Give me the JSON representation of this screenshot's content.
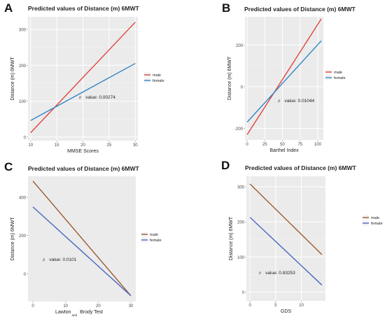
{
  "panels": [
    {
      "letter": "A"
    },
    {
      "letter": "B"
    },
    {
      "letter": "C"
    },
    {
      "letter": "D"
    }
  ],
  "legend_colors": {
    "male": "#e0443e",
    "female": "#2f86c7",
    "male_dark": "#9a5a2e",
    "female_dark": "#4a69c0"
  },
  "chart_data": [
    {
      "type": "line",
      "title": "Predicted values of Distance (m) 6MWT",
      "xlabel": "MMSE Scores",
      "ylabel": "Distance (m) 6MWT",
      "xlim": [
        9.5,
        30.5
      ],
      "ylim": [
        -10,
        335
      ],
      "x_ticks": [
        10,
        15,
        20,
        25,
        30
      ],
      "y_ticks": [
        0,
        100,
        200,
        300
      ],
      "grid": true,
      "legend_position": "right",
      "series": [
        {
          "name": "male",
          "color": "#e0443e",
          "x": [
            10,
            30
          ],
          "y": [
            12,
            320
          ]
        },
        {
          "name": "female",
          "color": "#2f86c7",
          "x": [
            10,
            30
          ],
          "y": [
            46,
            205
          ]
        }
      ],
      "annotation": {
        "p": "p",
        "text": "value: 0.00274",
        "x": 20.5,
        "y": 111
      }
    },
    {
      "type": "line",
      "title": "Predicted values of Distance (m) 6MWT",
      "xlabel": "Barthel Index",
      "ylabel": "Distance (m) 6MWT",
      "xlim": [
        -3,
        108
      ],
      "ylim": [
        -255,
        335
      ],
      "x_ticks": [
        0,
        25,
        50,
        75,
        100
      ],
      "y_ticks": [
        -200,
        0,
        200
      ],
      "grid": true,
      "legend_position": "right",
      "series": [
        {
          "name": "male",
          "color": "#e0443e",
          "x": [
            0,
            105
          ],
          "y": [
            -230,
            325
          ]
        },
        {
          "name": "female",
          "color": "#2f86c7",
          "x": [
            0,
            105
          ],
          "y": [
            -170,
            220
          ]
        }
      ],
      "annotation": {
        "p": "p",
        "text": "value: 0.01044",
        "x": 53,
        "y": -68
      }
    },
    {
      "type": "line",
      "title": "Predicted values of Distance (m) 6MWT",
      "xlabel": "Lawton",
      "xlabel_sub": "and",
      "xlabel_end": "Brody Test",
      "ylabel": "Distance (m) 6MWT",
      "xlim": [
        -1.5,
        31.5
      ],
      "ylim": [
        -145,
        510
      ],
      "x_ticks": [
        0,
        10,
        20,
        30
      ],
      "y_ticks": [
        0,
        200,
        400
      ],
      "grid": false,
      "legend_position": "right",
      "series": [
        {
          "name": "male",
          "color": "#9a5a2e",
          "x": [
            0,
            30
          ],
          "y": [
            485,
            -115
          ]
        },
        {
          "name": "female",
          "color": "#4a69c0",
          "x": [
            0,
            30
          ],
          "y": [
            350,
            -115
          ]
        }
      ],
      "annotation": {
        "p": "p",
        "text": "value: 0.0101",
        "x": 5,
        "y": 75
      }
    },
    {
      "type": "line",
      "title": "Predicted values of Distance (m) 6MWT",
      "xlabel": "GDS",
      "ylabel": "Distance (m) 6MWT",
      "xlim": [
        -0.7,
        14.7
      ],
      "ylim": [
        -25,
        330
      ],
      "x_ticks": [
        0,
        5,
        10
      ],
      "y_ticks": [
        0,
        100,
        200,
        300
      ],
      "grid": true,
      "legend_position": "right",
      "series": [
        {
          "name": "male",
          "color": "#9a5a2e",
          "x": [
            0,
            14
          ],
          "y": [
            308,
            107
          ]
        },
        {
          "name": "female",
          "color": "#4a69c0",
          "x": [
            0,
            14
          ],
          "y": [
            213,
            20
          ]
        }
      ],
      "annotation": {
        "p": "p",
        "text": "value: 0.83253",
        "x": 3,
        "y": 55
      }
    }
  ]
}
